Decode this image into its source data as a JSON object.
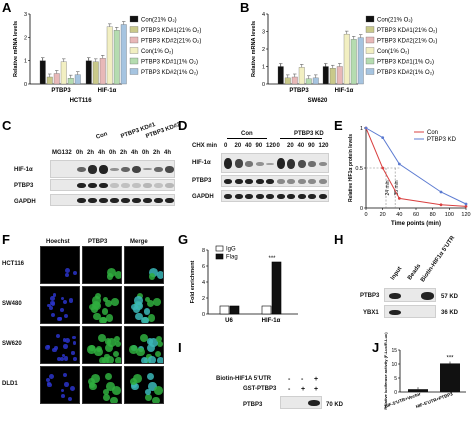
{
  "panels": {
    "A": "A",
    "B": "B",
    "C": "C",
    "D": "D",
    "E": "E",
    "F": "F",
    "G": "G",
    "H": "H",
    "I": "I",
    "J": "J"
  },
  "panelA": {
    "ylabel": "Relative mRNA levels",
    "cell_line": "HCT116",
    "legend": [
      "Con(21% O₂)",
      "PTBP3 KD#1(21% O₂)",
      "PTBP3 KD#2(21% O₂)",
      "Con(1% O₂)",
      "PTBP3 KD#1(1% O₂)",
      "PTBP3 KD#2(1% O₂)"
    ]
  },
  "panelB": {
    "ylabel": "Relative mRNA levels",
    "cell_line": "SW620",
    "legend": [
      "Con(21% O₂)",
      "PTBP3 KD#1(21% O₂)",
      "PTBP3 KD#2(21% O₂)",
      "Con(1% O₂)",
      "PTBP3 KD#1(1% O₂)",
      "PTBP3 KD#2(1% O₂)"
    ]
  },
  "colors": {
    "series": [
      "#111111",
      "#c9c98a",
      "#e8b8b8",
      "#f2efc2",
      "#b5dcb0",
      "#a6c4e0"
    ],
    "con_line": "#d94040",
    "kd_line": "#5c7bd1"
  },
  "chart_data": [
    {
      "type": "bar",
      "panel": "A",
      "categories": [
        "PTBP3",
        "HIF-1α"
      ],
      "ylabel": "Relative mRNA levels",
      "ylim": [
        0,
        3
      ],
      "yticks": [
        0,
        1,
        2,
        3
      ],
      "series": [
        {
          "name": "Con(21% O₂)",
          "values": [
            1.0,
            1.0
          ]
        },
        {
          "name": "PTBP3 KD#1(21% O₂)",
          "values": [
            0.3,
            0.95
          ]
        },
        {
          "name": "PTBP3 KD#2(21% O₂)",
          "values": [
            0.45,
            1.1
          ]
        },
        {
          "name": "Con(1% O₂)",
          "values": [
            0.95,
            2.45
          ]
        },
        {
          "name": "PTBP3 KD#1(1% O₂)",
          "values": [
            0.25,
            2.3
          ]
        },
        {
          "name": "PTBP3 KD#2(1% O₂)",
          "values": [
            0.4,
            2.55
          ]
        }
      ]
    },
    {
      "type": "bar",
      "panel": "B",
      "categories": [
        "PTBP3",
        "HIF-1α"
      ],
      "ylabel": "Relative mRNA levels",
      "ylim": [
        0,
        4
      ],
      "yticks": [
        0,
        1,
        2,
        3,
        4
      ],
      "series": [
        {
          "name": "Con(21% O₂)",
          "values": [
            1.0,
            1.0
          ]
        },
        {
          "name": "PTBP3 KD#1(21% O₂)",
          "values": [
            0.35,
            0.9
          ]
        },
        {
          "name": "PTBP3 KD#2(21% O₂)",
          "values": [
            0.4,
            1.0
          ]
        },
        {
          "name": "Con(1% O₂)",
          "values": [
            0.95,
            2.85
          ]
        },
        {
          "name": "PTBP3 KD#1(1% O₂)",
          "values": [
            0.3,
            2.55
          ]
        },
        {
          "name": "PTBP3 KD#2(1% O₂)",
          "values": [
            0.35,
            2.65
          ]
        }
      ]
    },
    {
      "type": "line",
      "panel": "E",
      "xlabel": "Time points (min)",
      "ylabel": "Relative HIF1α protein levels",
      "xlim": [
        0,
        120
      ],
      "ylim": [
        0,
        1
      ],
      "xticks": [
        0,
        20,
        40,
        60,
        80,
        100,
        120
      ],
      "yticks": [
        0,
        0.5,
        1
      ],
      "x": [
        0,
        20,
        40,
        90,
        120
      ],
      "series": [
        {
          "name": "Con",
          "values": [
            1.0,
            0.5,
            0.12,
            0.04,
            0.02
          ]
        },
        {
          "name": "PTBP3 KD",
          "values": [
            1.0,
            0.88,
            0.55,
            0.2,
            0.05
          ]
        }
      ],
      "annotations": [
        "24 min",
        "35 min"
      ]
    },
    {
      "type": "bar",
      "panel": "G",
      "categories": [
        "U6",
        "HIF-1α"
      ],
      "ylabel": "Fold enrichment",
      "ylim": [
        0,
        8
      ],
      "yticks": [
        0,
        2,
        4,
        6,
        8
      ],
      "series": [
        {
          "name": "IgG",
          "values": [
            1.0,
            1.0
          ]
        },
        {
          "name": "Flag",
          "values": [
            1.0,
            6.5
          ]
        }
      ],
      "significance": "***"
    },
    {
      "type": "bar",
      "panel": "J",
      "categories": [
        "HIF-5’UTR+Vector",
        "HIF-5’UTR+PTBP3"
      ],
      "ylabel": "Relative luciferase activity (F-Luc/R-Luc)",
      "ylim": [
        0,
        15
      ],
      "yticks": [
        0,
        5,
        10,
        15
      ],
      "values": [
        1.0,
        10.2
      ],
      "significance": "***"
    }
  ],
  "panelC": {
    "groups": [
      "Con",
      "PTBP3 KD#1",
      "PTBP3 KD#2"
    ],
    "mg132": "MG132",
    "times": [
      "0h",
      "2h",
      "4h",
      "0h",
      "2h",
      "4h",
      "0h",
      "2h",
      "4h"
    ],
    "rows": [
      "HIF-1α",
      "PTBP3",
      "GAPDH"
    ]
  },
  "panelD": {
    "chx": "CHX min",
    "groups": [
      "Con",
      "PTBP3 KD"
    ],
    "times": [
      "0",
      "20",
      "40",
      "90",
      "120",
      "0",
      "20",
      "40",
      "90",
      "120"
    ],
    "rows": [
      "HIF-1α",
      "PTBP3",
      "GAPDH"
    ]
  },
  "panelF": {
    "columns": [
      "Hoechst",
      "PTBP3",
      "Merge"
    ],
    "rows": [
      "HCT116",
      "SW480",
      "SW620",
      "DLD1"
    ]
  },
  "panelH": {
    "lanes": [
      "Input",
      "Beads",
      "Biotin-HIF1α 5’UTR"
    ],
    "rows": [
      "PTBP3",
      "YBX1"
    ],
    "sizes": [
      "57 KD",
      "36 KD"
    ]
  },
  "panelI": {
    "rows": [
      "Biotin-HIF1A 5’UTR",
      "GST-PTBP3"
    ],
    "signs": [
      [
        "-",
        "-",
        "+"
      ],
      [
        "-",
        "+",
        "+"
      ]
    ],
    "blot_row": "PTBP3",
    "size": "70 KD"
  }
}
